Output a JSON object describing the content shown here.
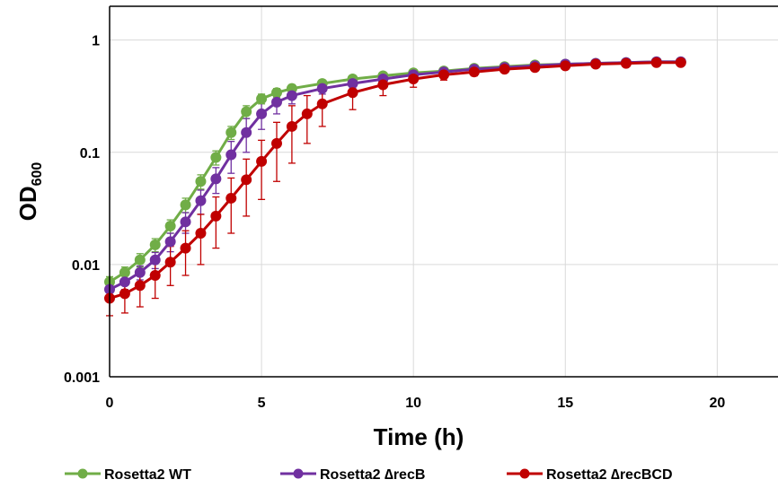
{
  "chart_data": {
    "type": "line",
    "title": "",
    "xlabel": "Time (h)",
    "ylabel": "OD",
    "ylabel_sub": "600",
    "xlim": [
      0,
      22
    ],
    "ylim": [
      0.001,
      2
    ],
    "yscale": "log",
    "grid": true,
    "legend_position": "bottom",
    "x_ticks": [
      0,
      5,
      10,
      15,
      20
    ],
    "x_tick_labels": [
      "0",
      "5",
      "10",
      "15",
      "20"
    ],
    "y_ticks": [
      0.001,
      0.01,
      0.1,
      1
    ],
    "y_tick_labels": [
      "0.001",
      "0.01",
      "0.1",
      "1"
    ],
    "series": [
      {
        "name": "Rosetta2 WT",
        "color": "#70AD47",
        "x": [
          0,
          0.5,
          1,
          1.5,
          2,
          2.5,
          3,
          3.5,
          4,
          4.5,
          5,
          5.5,
          6,
          7,
          8,
          9,
          10,
          11,
          12,
          13,
          14,
          15,
          16,
          17,
          18,
          18.8
        ],
        "y": [
          0.007,
          0.0085,
          0.011,
          0.015,
          0.022,
          0.034,
          0.055,
          0.09,
          0.15,
          0.23,
          0.3,
          0.34,
          0.37,
          0.41,
          0.45,
          0.48,
          0.51,
          0.53,
          0.56,
          0.58,
          0.6,
          0.61,
          0.62,
          0.63,
          0.64,
          0.64
        ],
        "error": [
          0.0008,
          0.001,
          0.0015,
          0.002,
          0.003,
          0.005,
          0.008,
          0.013,
          0.02,
          0.03,
          0.03,
          0.03,
          0.03,
          0.03,
          0.03,
          0.03,
          0.03,
          0.03,
          0.03,
          0.03,
          0.03,
          0.03,
          0.03,
          0.03,
          0.03,
          0.03
        ]
      },
      {
        "name": "Rosetta2 ∆recB",
        "color": "#7030A0",
        "x": [
          0,
          0.5,
          1,
          1.5,
          2,
          2.5,
          3,
          3.5,
          4,
          4.5,
          5,
          5.5,
          6,
          7,
          8,
          9,
          10,
          11,
          12,
          13,
          14,
          15,
          16,
          17,
          18,
          18.8
        ],
        "y": [
          0.006,
          0.007,
          0.0085,
          0.011,
          0.016,
          0.024,
          0.037,
          0.058,
          0.095,
          0.15,
          0.22,
          0.28,
          0.32,
          0.37,
          0.41,
          0.45,
          0.49,
          0.52,
          0.55,
          0.57,
          0.59,
          0.61,
          0.62,
          0.63,
          0.64,
          0.64
        ],
        "error": [
          0.0008,
          0.001,
          0.0012,
          0.0018,
          0.003,
          0.005,
          0.009,
          0.015,
          0.03,
          0.05,
          0.06,
          0.06,
          0.05,
          0.04,
          0.04,
          0.03,
          0.03,
          0.03,
          0.03,
          0.03,
          0.03,
          0.03,
          0.03,
          0.03,
          0.03,
          0.03
        ]
      },
      {
        "name": "Rosetta2 ∆recBCD",
        "color": "#C00000",
        "x": [
          0,
          0.5,
          1,
          1.5,
          2,
          2.5,
          3,
          3.5,
          4,
          4.5,
          5,
          5.5,
          6,
          6.5,
          7,
          8,
          9,
          10,
          11,
          12,
          13,
          14,
          15,
          16,
          17,
          18,
          18.8
        ],
        "y": [
          0.005,
          0.0055,
          0.0065,
          0.008,
          0.0105,
          0.014,
          0.019,
          0.027,
          0.039,
          0.057,
          0.083,
          0.12,
          0.17,
          0.22,
          0.27,
          0.34,
          0.4,
          0.45,
          0.49,
          0.52,
          0.55,
          0.57,
          0.59,
          0.61,
          0.62,
          0.63,
          0.63
        ],
        "error": [
          0.0015,
          0.0018,
          0.0023,
          0.003,
          0.004,
          0.006,
          0.009,
          0.013,
          0.02,
          0.03,
          0.045,
          0.065,
          0.09,
          0.1,
          0.1,
          0.1,
          0.08,
          0.07,
          0.05,
          0.04,
          0.03,
          0.03,
          0.03,
          0.03,
          0.03,
          0.03,
          0.03
        ]
      }
    ]
  }
}
